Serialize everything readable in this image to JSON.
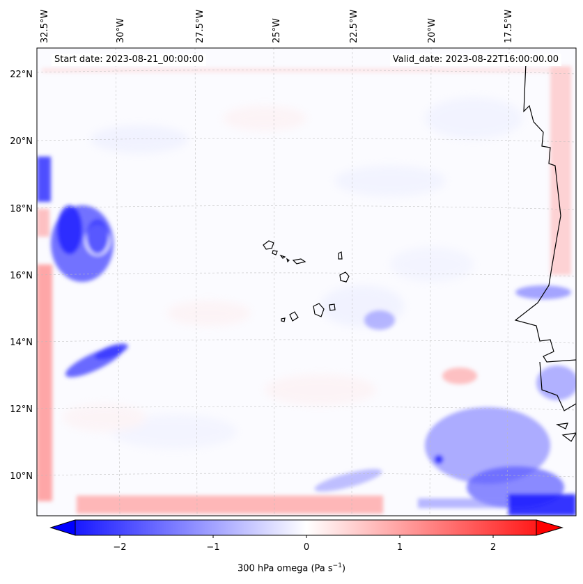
{
  "map": {
    "start_label": "Start date: 2023-08-21_00:00:00",
    "valid_label": "Valid_date: 2023-08-22T16:00:00.00",
    "field": "300 hPa omega",
    "lon_ticks": [
      "32.5°W",
      "30°W",
      "27.5°W",
      "25°W",
      "22.5°W",
      "20°W",
      "17.5°W"
    ],
    "lat_ticks": [
      "22°N",
      "20°N",
      "18°N",
      "16°N",
      "14°N",
      "12°N",
      "10°N"
    ],
    "gridlines": true,
    "coastline_color": "#000000"
  },
  "colorbar": {
    "label_main": "300 hPa omega (Pa s",
    "label_exp": "−1",
    "label_close": ")",
    "ticks": [
      "−2",
      "−1",
      "0",
      "1",
      "2"
    ],
    "range": [
      -2.6,
      2.6
    ],
    "colormap": "bwr",
    "extend": "both",
    "color_min": "#0000ff",
    "color_mid": "#ffffff",
    "color_max": "#ff0000"
  }
}
